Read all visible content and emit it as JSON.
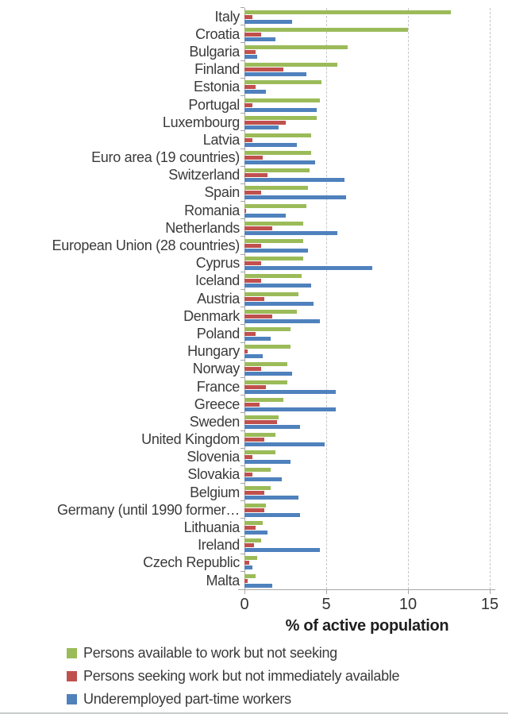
{
  "chart_data": {
    "type": "bar",
    "orientation": "horizontal",
    "xlabel": "% of active population",
    "xlim": [
      0,
      15
    ],
    "x_ticks": [
      0,
      5,
      10,
      15
    ],
    "grid": "vertical-dashed",
    "legend_position": "bottom-left",
    "categories": [
      "Italy",
      "Croatia",
      "Bulgaria",
      "Finland",
      "Estonia",
      "Portugal",
      "Luxembourg",
      "Latvia",
      "Euro area (19 countries)",
      "Switzerland",
      "Spain",
      "Romania",
      "Netherlands",
      "European Union (28 countries)",
      "Cyprus",
      "Iceland",
      "Austria",
      "Denmark",
      "Poland",
      "Hungary",
      "Norway",
      "France",
      "Greece",
      "Sweden",
      "United Kingdom",
      "Slovenia",
      "Slovakia",
      "Belgium",
      "Germany (until 1990 former…",
      "Lithuania",
      "Ireland",
      "Czech Republic",
      "Malta"
    ],
    "series": [
      {
        "name": "Persons available to work but not seeking",
        "color": "#9bbb59",
        "values": [
          12.6,
          10.0,
          6.3,
          5.7,
          4.7,
          4.6,
          4.4,
          4.1,
          4.1,
          4.0,
          3.9,
          3.8,
          3.6,
          3.6,
          3.6,
          3.5,
          3.3,
          3.2,
          2.8,
          2.8,
          2.6,
          2.6,
          2.4,
          2.1,
          1.9,
          1.9,
          1.6,
          1.6,
          1.3,
          1.1,
          1.0,
          0.8,
          0.7
        ]
      },
      {
        "name": "Persons seeking work but not immediately available",
        "color": "#c0504d",
        "values": [
          0.5,
          1.0,
          0.7,
          2.4,
          0.7,
          0.5,
          2.5,
          0.5,
          1.1,
          1.4,
          1.0,
          0.1,
          1.7,
          1.0,
          1.0,
          1.0,
          1.2,
          1.7,
          0.7,
          0.2,
          1.0,
          1.3,
          0.9,
          2.0,
          1.2,
          0.5,
          0.5,
          1.2,
          1.2,
          0.7,
          0.6,
          0.3,
          0.2
        ]
      },
      {
        "name": "Underemployed part-time workers",
        "color": "#4f81bd",
        "values": [
          2.9,
          1.9,
          0.8,
          3.8,
          1.3,
          4.4,
          2.1,
          3.2,
          4.3,
          6.1,
          6.2,
          2.5,
          5.7,
          3.9,
          7.8,
          4.1,
          4.2,
          4.6,
          1.6,
          1.1,
          2.9,
          5.6,
          5.6,
          3.4,
          4.9,
          2.8,
          2.3,
          3.3,
          3.4,
          1.4,
          4.6,
          0.5,
          1.7
        ]
      }
    ]
  },
  "colors": {
    "axis": "#a6a6a6",
    "gridline": "#c6c6c6",
    "text": "#3a3a3a"
  }
}
